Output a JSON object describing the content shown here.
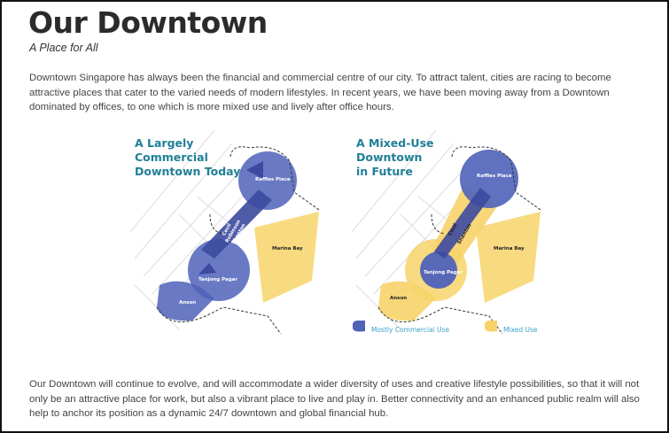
{
  "page": {
    "title": "Our Downtown",
    "subtitle": "A Place for All",
    "intro": "Downtown Singapore has always been the financial and commercial centre of our city. To attract talent, cities are racing to become attractive places that cater to the varied needs of modern lifestyles. In recent years, we have been moving away from a Downtown dominated by offices, to one which is more mixed use and lively after office hours.",
    "closing": "Our Downtown will continue to evolve, and will accommodate a wider diversity of uses and creative lifestyle possibilities, so that it will not only be an attractive place for work, but also a vibrant place to live and play in. Better connectivity and an enhanced public realm will also help to anchor its position as a dynamic 24/7 downtown and global financial hub."
  },
  "figure": {
    "left_map": {
      "title": [
        "A Largely",
        "Commercial",
        "Downtown Today"
      ]
    },
    "right_map": {
      "title": [
        "A Mixed-Use",
        "Downtown",
        "in Future"
      ]
    },
    "places": {
      "raffles": "Raffles Place",
      "corridor": [
        "Cecil",
        "Robinson",
        "Shenton"
      ],
      "tanjong": "Tanjong Pagar",
      "marina": "Marina Bay",
      "anson": "Anson"
    },
    "legend": [
      {
        "label": "Mostly Commercial Use",
        "color": "#4f62b8"
      },
      {
        "label": "Mixed Use",
        "color": "#f7d36a"
      }
    ]
  },
  "colors": {
    "commercial": "#4f62b8",
    "mixed": "#f7d36a",
    "title_teal": "#1f7f96",
    "text": "#444444"
  }
}
